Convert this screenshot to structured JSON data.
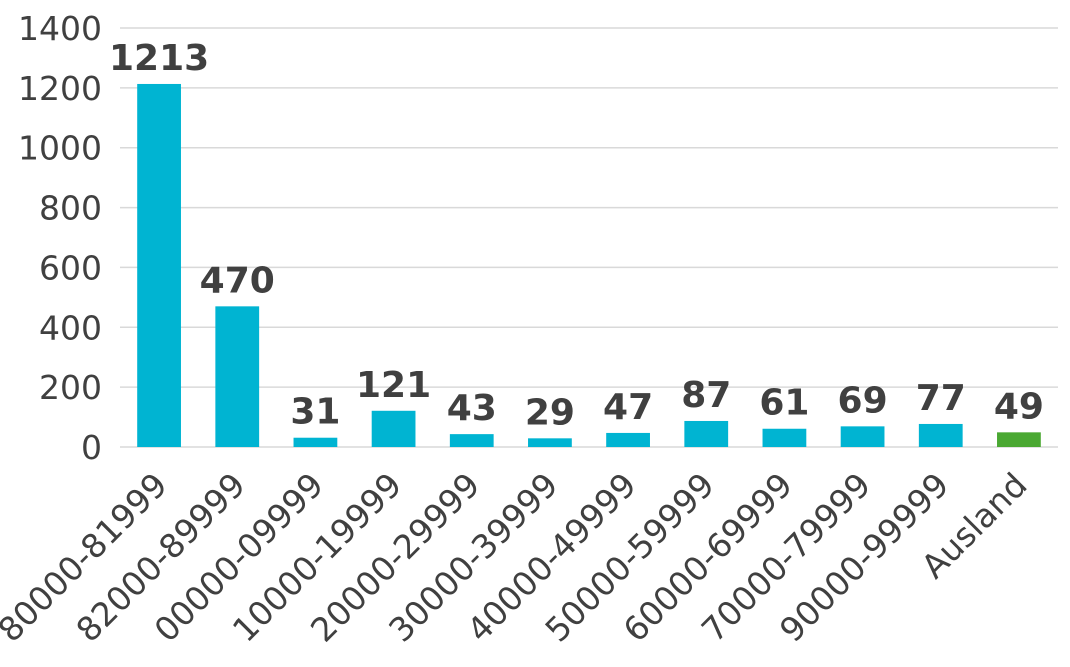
{
  "chart_data": {
    "type": "bar",
    "title": "",
    "xlabel": "",
    "ylabel": "",
    "ylim": [
      0,
      1400
    ],
    "yticks": [
      0,
      200,
      400,
      600,
      800,
      1000,
      1200,
      1400
    ],
    "grid": true,
    "legend": "none",
    "categories": [
      "80000-81999",
      "82000-89999",
      "00000-09999",
      "10000-19999",
      "20000-29999",
      "30000-39999",
      "40000-49999",
      "50000-59999",
      "60000-69999",
      "70000-79999",
      "90000-99999",
      "Ausland"
    ],
    "values": [
      1213,
      470,
      31,
      121,
      43,
      29,
      47,
      87,
      61,
      69,
      77,
      49
    ],
    "colors": {
      "default": "#00b4d2",
      "highlight": "#4aa832",
      "highlight_categories": [
        "Ausland"
      ],
      "grid": "#d9d9d9",
      "text": "#404040"
    }
  }
}
